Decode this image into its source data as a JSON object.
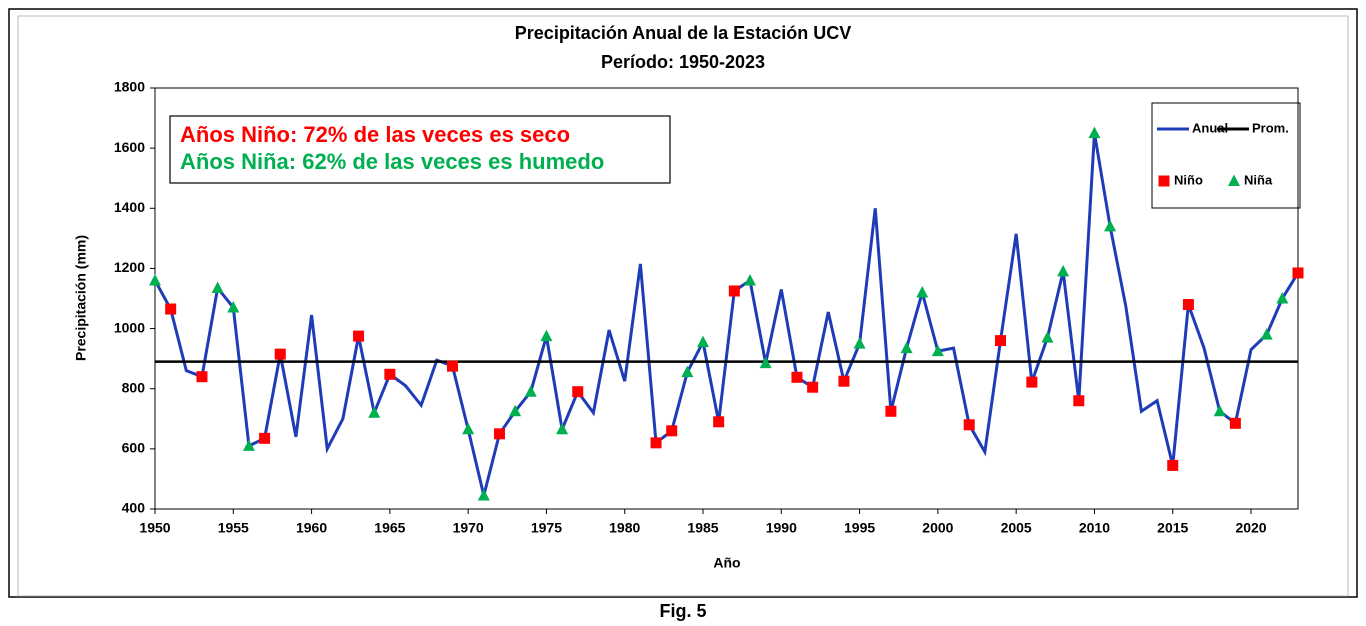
{
  "chart_data": {
    "type": "line",
    "title": "Precipitación Anual de la Estación UCV",
    "subtitle": "Período:  1950-2023",
    "x_label": "Año",
    "y_label": "Precipitación (mm)",
    "caption": "Fig. 5",
    "annotations": [
      {
        "text": "Años Niño: 72%  de las veces es seco",
        "color": "#ff0000"
      },
      {
        "text": "Años Niña: 62% de las veces es humedo",
        "color": "#00b050"
      }
    ],
    "x": [
      1950,
      1951,
      1952,
      1953,
      1954,
      1955,
      1956,
      1957,
      1958,
      1959,
      1960,
      1961,
      1962,
      1963,
      1964,
      1965,
      1966,
      1967,
      1968,
      1969,
      1970,
      1971,
      1972,
      1973,
      1974,
      1975,
      1976,
      1977,
      1978,
      1979,
      1980,
      1981,
      1982,
      1983,
      1984,
      1985,
      1986,
      1987,
      1988,
      1989,
      1990,
      1991,
      1992,
      1993,
      1994,
      1995,
      1996,
      1997,
      1998,
      1999,
      2000,
      2001,
      2002,
      2003,
      2004,
      2005,
      2006,
      2007,
      2008,
      2009,
      2010,
      2011,
      2012,
      2013,
      2014,
      2015,
      2016,
      2017,
      2018,
      2019,
      2020,
      2021,
      2022,
      2023
    ],
    "series": [
      {
        "name": "Anual",
        "color": "#1f3cb8",
        "marker": "none",
        "values": [
          1160,
          1065,
          860,
          840,
          1135,
          1070,
          610,
          635,
          915,
          640,
          1045,
          600,
          700,
          975,
          720,
          848,
          810,
          745,
          895,
          875,
          665,
          445,
          650,
          725,
          790,
          975,
          665,
          790,
          720,
          995,
          825,
          1215,
          620,
          660,
          855,
          955,
          690,
          1125,
          1160,
          885,
          1130,
          838,
          805,
          1055,
          825,
          950,
          1400,
          725,
          935,
          1120,
          925,
          935,
          680,
          590,
          960,
          1315,
          822,
          970,
          1190,
          760,
          1650,
          1340,
          1075,
          725,
          760,
          545,
          1080,
          935,
          725,
          685,
          930,
          980,
          1100,
          1185
        ]
      },
      {
        "name": "Prom.",
        "color": "#000000",
        "marker": "none",
        "values": [
          890,
          890,
          890,
          890,
          890,
          890,
          890,
          890,
          890,
          890,
          890,
          890,
          890,
          890,
          890,
          890,
          890,
          890,
          890,
          890,
          890,
          890,
          890,
          890,
          890,
          890,
          890,
          890,
          890,
          890,
          890,
          890,
          890,
          890,
          890,
          890,
          890,
          890,
          890,
          890,
          890,
          890,
          890,
          890,
          890,
          890,
          890,
          890,
          890,
          890,
          890,
          890,
          890,
          890,
          890,
          890,
          890,
          890,
          890,
          890,
          890,
          890,
          890,
          890,
          890,
          890,
          890,
          890,
          890,
          890,
          890,
          890,
          890,
          890
        ]
      },
      {
        "name": "Niño",
        "color": "#ff0000",
        "marker": "square",
        "values": [
          null,
          1065,
          null,
          840,
          null,
          null,
          null,
          635,
          915,
          null,
          null,
          null,
          null,
          975,
          null,
          848,
          null,
          null,
          null,
          875,
          null,
          null,
          650,
          null,
          null,
          null,
          null,
          790,
          null,
          null,
          null,
          null,
          620,
          660,
          null,
          null,
          690,
          1125,
          null,
          null,
          null,
          838,
          805,
          null,
          825,
          null,
          null,
          725,
          null,
          null,
          null,
          null,
          680,
          null,
          960,
          null,
          822,
          null,
          null,
          760,
          null,
          null,
          null,
          null,
          null,
          545,
          1080,
          null,
          null,
          685,
          null,
          null,
          null,
          1185
        ]
      },
      {
        "name": "Niña",
        "color": "#00b050",
        "marker": "triangle",
        "values": [
          1160,
          null,
          null,
          null,
          1135,
          1070,
          610,
          null,
          null,
          null,
          null,
          null,
          null,
          null,
          720,
          null,
          null,
          null,
          null,
          null,
          665,
          445,
          null,
          725,
          790,
          975,
          665,
          null,
          null,
          null,
          null,
          null,
          null,
          null,
          855,
          955,
          null,
          null,
          1160,
          885,
          null,
          null,
          null,
          null,
          null,
          950,
          null,
          null,
          935,
          1120,
          925,
          null,
          null,
          null,
          null,
          null,
          null,
          970,
          1190,
          null,
          1650,
          1340,
          null,
          null,
          null,
          null,
          null,
          null,
          725,
          null,
          null,
          980,
          1100,
          null
        ]
      }
    ],
    "xlim": [
      1950,
      2023
    ],
    "xticks": [
      1950,
      1955,
      1960,
      1965,
      1970,
      1975,
      1980,
      1985,
      1990,
      1995,
      2000,
      2005,
      2010,
      2015,
      2020
    ],
    "ylim": [
      400,
      1800
    ],
    "yticks": [
      400,
      600,
      800,
      1000,
      1200,
      1400,
      1600,
      1800
    ],
    "grid": false,
    "legend": "upper right"
  }
}
